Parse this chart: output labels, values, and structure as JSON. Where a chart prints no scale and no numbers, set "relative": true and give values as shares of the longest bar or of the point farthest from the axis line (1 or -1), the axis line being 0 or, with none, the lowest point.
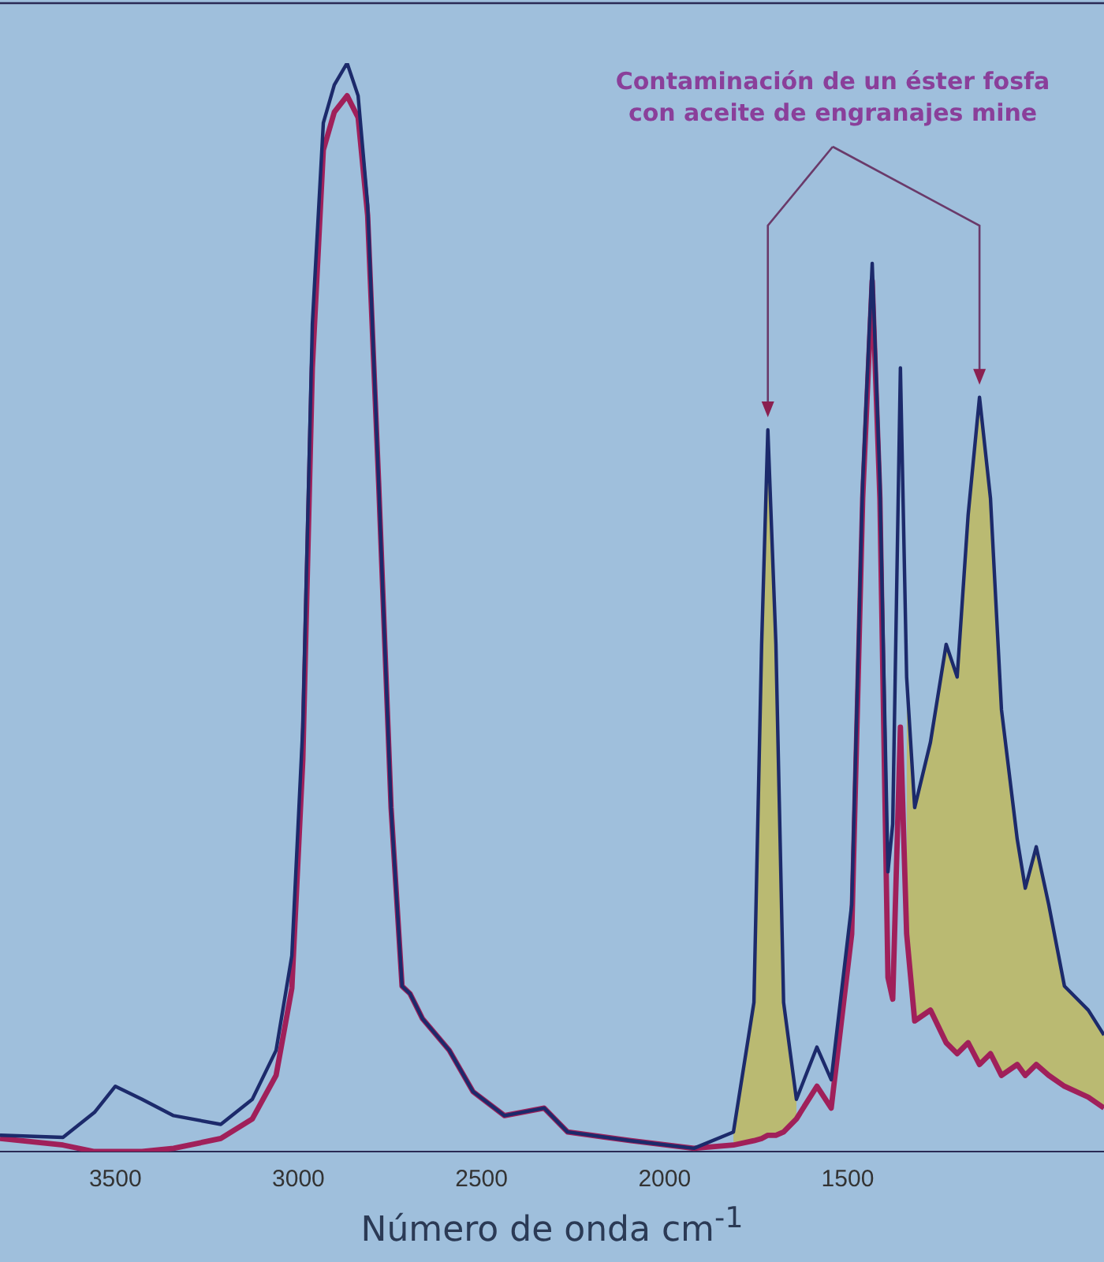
{
  "chart_data": {
    "type": "line",
    "relative": true,
    "xlabel": "Número de onda cm$^{-1}$",
    "annotations": [
      "Contaminación de un éster fosfa",
      "con aceite de engranajes mine"
    ],
    "xlim": [
      3815,
      800
    ],
    "xticks": [
      3500,
      3000,
      2500,
      2000,
      1500
    ],
    "grid": false,
    "legend": false,
    "marker": "none",
    "line_style": "solid",
    "x": [
      3815,
      3643,
      3557,
      3500,
      3427,
      3341,
      3212,
      3126,
      3061,
      3018,
      2988,
      2962,
      2932,
      2902,
      2867,
      2837,
      2811,
      2781,
      2747,
      2717,
      2695,
      2661,
      2588,
      2523,
      2437,
      2329,
      2265,
      2092,
      1920,
      1812,
      1756,
      1735,
      1718,
      1696,
      1675,
      1640,
      1584,
      1545,
      1489,
      1459,
      1433,
      1412,
      1390,
      1377,
      1356,
      1339,
      1317,
      1274,
      1231,
      1201,
      1171,
      1140,
      1110,
      1080,
      1037,
      1015,
      985,
      951,
      908,
      843,
      800
    ],
    "series": [
      {
        "color": "#1c2a6b",
        "values": [
          0.015,
          0.013,
          0.036,
          0.06,
          0.048,
          0.033,
          0.025,
          0.048,
          0.093,
          0.18,
          0.39,
          0.76,
          0.945,
          0.98,
          1.0,
          0.97,
          0.87,
          0.615,
          0.316,
          0.152,
          0.145,
          0.122,
          0.093,
          0.055,
          0.033,
          0.04,
          0.018,
          0.01,
          0.003,
          0.018,
          0.137,
          0.466,
          0.663,
          0.466,
          0.137,
          0.048,
          0.096,
          0.066,
          0.227,
          0.615,
          0.816,
          0.615,
          0.257,
          0.301,
          0.72,
          0.436,
          0.316,
          0.376,
          0.466,
          0.436,
          0.585,
          0.693,
          0.6,
          0.406,
          0.287,
          0.242,
          0.28,
          0.227,
          0.152,
          0.13,
          0.107
        ],
        "lower": [
          null,
          null,
          null,
          null,
          null,
          null,
          null,
          null,
          null,
          null,
          null,
          null,
          null,
          null,
          null,
          null,
          null,
          null,
          null,
          null,
          null,
          null,
          null,
          null,
          null,
          null,
          null,
          null,
          null,
          0.006,
          0.01,
          0.012,
          0.015,
          0.015,
          0.018,
          0.03,
          null,
          null,
          null,
          null,
          null,
          null,
          null,
          null,
          null,
          0.2,
          0.12,
          0.13,
          0.1,
          0.09,
          0.1,
          0.08,
          0.09,
          0.07,
          0.08,
          0.07,
          0.08,
          0.07,
          0.06,
          0.05,
          0.04
        ],
        "upper": [
          null,
          null,
          null,
          null,
          null,
          null,
          null,
          null,
          null,
          null,
          null,
          null,
          null,
          null,
          null,
          null,
          null,
          null,
          null,
          null,
          null,
          null,
          null,
          null,
          null,
          null,
          null,
          null,
          null,
          0.018,
          0.137,
          0.466,
          0.663,
          0.466,
          0.137,
          0.048,
          null,
          null,
          null,
          null,
          null,
          null,
          null,
          null,
          null,
          0.436,
          0.316,
          0.376,
          0.466,
          0.436,
          0.585,
          0.693,
          0.6,
          0.406,
          0.287,
          0.242,
          0.28,
          0.227,
          0.152,
          0.13,
          0.107
        ]
      },
      {
        "color": "#a0205a",
        "values": [
          0.012,
          0.006,
          0.0,
          0.0,
          0.0,
          0.003,
          0.012,
          0.03,
          0.07,
          0.15,
          0.36,
          0.72,
          0.92,
          0.955,
          0.97,
          0.95,
          0.86,
          0.615,
          0.316,
          0.152,
          0.145,
          0.122,
          0.093,
          0.055,
          0.033,
          0.04,
          0.018,
          0.01,
          0.003,
          0.006,
          0.01,
          0.012,
          0.015,
          0.015,
          0.018,
          0.03,
          0.06,
          0.04,
          0.2,
          0.6,
          0.8,
          0.6,
          0.16,
          0.14,
          0.39,
          0.2,
          0.12,
          0.13,
          0.1,
          0.09,
          0.1,
          0.08,
          0.09,
          0.07,
          0.08,
          0.07,
          0.08,
          0.07,
          0.06,
          0.05,
          0.04
        ]
      }
    ]
  }
}
